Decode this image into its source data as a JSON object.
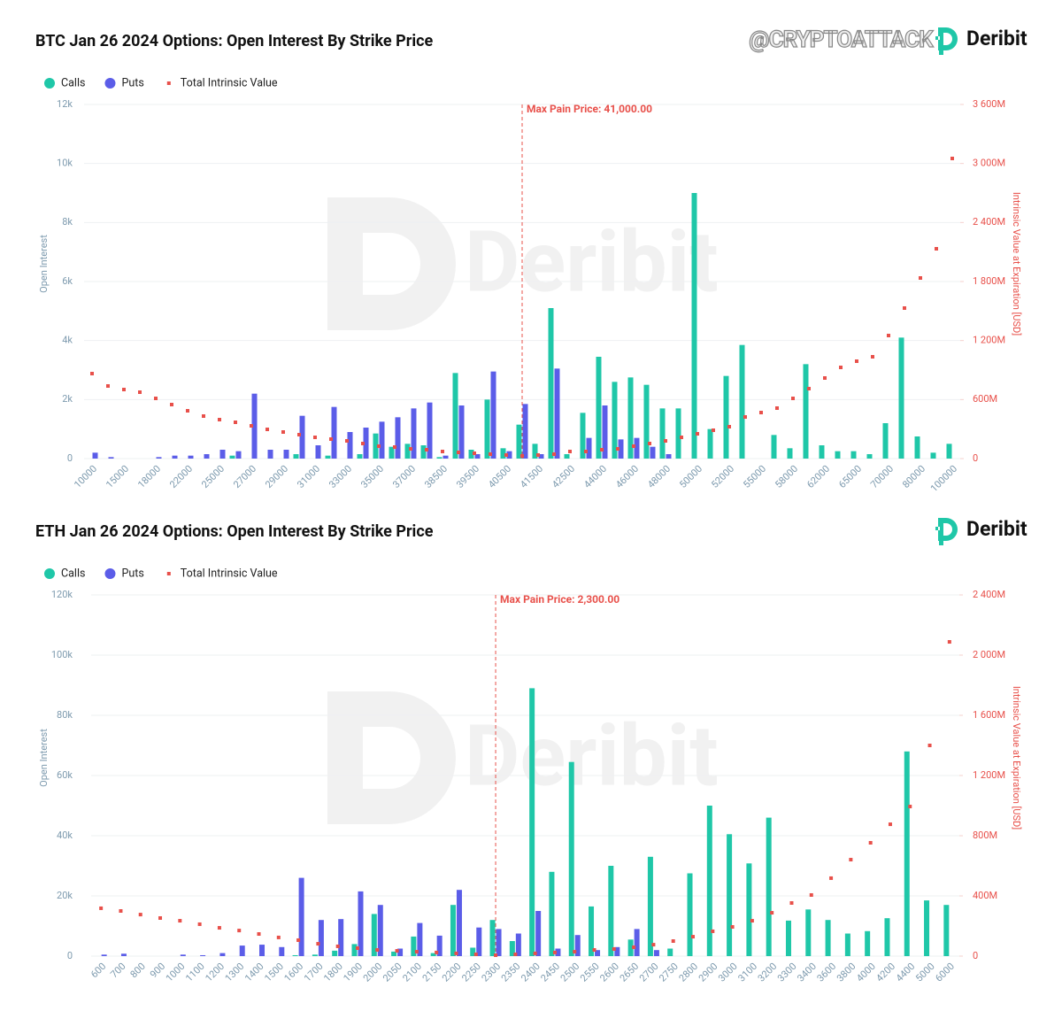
{
  "watermark_handle": "@CRYPTOATTACK",
  "brand": "Deribit",
  "chart_data": [
    {
      "type": "bar",
      "title": "BTC Jan 26 2024 Options: Open Interest By Strike Price",
      "categories": [
        "10000",
        null,
        "15000",
        null,
        "18000",
        null,
        "22000",
        null,
        "25000",
        null,
        "27000",
        null,
        "29000",
        null,
        "31000",
        null,
        "33000",
        null,
        "35000",
        null,
        "37000",
        null,
        "38500",
        null,
        "39500",
        null,
        "40500",
        null,
        "41500",
        null,
        "42500",
        null,
        "44000",
        null,
        "46000",
        null,
        "48000",
        null,
        "50000",
        null,
        "52000",
        null,
        "55000",
        null,
        "58000",
        null,
        "62000",
        null,
        "65000",
        null,
        "70000",
        null,
        "80000",
        null,
        "100000"
      ],
      "series": [
        {
          "name": "Calls",
          "type": "bar",
          "color": "#1fc7a8",
          "values": [
            0,
            0,
            0,
            0,
            0,
            0,
            0,
            0,
            0,
            100,
            0,
            0,
            0,
            150,
            0,
            100,
            0,
            150,
            850,
            400,
            500,
            450,
            50,
            2900,
            300,
            2000,
            350,
            1150,
            500,
            5100,
            150,
            1550,
            3450,
            2600,
            2750,
            2500,
            1700,
            1700,
            9000,
            1000,
            2800,
            3850,
            0,
            800,
            350,
            3200,
            450,
            250,
            250,
            150,
            1200,
            4100,
            750,
            200,
            500
          ]
        },
        {
          "name": "Puts",
          "type": "bar",
          "color": "#5b5de8",
          "values": [
            200,
            50,
            0,
            0,
            50,
            100,
            100,
            150,
            300,
            250,
            2200,
            300,
            300,
            1450,
            450,
            1750,
            900,
            1050,
            1250,
            1400,
            1700,
            1900,
            100,
            1800,
            150,
            2950,
            250,
            1850,
            150,
            3050,
            0,
            700,
            1800,
            650,
            700,
            400,
            150,
            0,
            0,
            0,
            0,
            0,
            0,
            0,
            0,
            0,
            0,
            0,
            0,
            0,
            0,
            0,
            0,
            0,
            0
          ]
        },
        {
          "name": "Total Intrinsic Value",
          "type": "scatter",
          "axis": "y2",
          "color": "#e8504a",
          "values": [
            864000000,
            738000000,
            702000000,
            675000000,
            612000000,
            549000000,
            486000000,
            432000000,
            396000000,
            369000000,
            333000000,
            297000000,
            270000000,
            243000000,
            216000000,
            198000000,
            180000000,
            153000000,
            126000000,
            117000000,
            99000000,
            90000000,
            72000000,
            63000000,
            54000000,
            45000000,
            36000000,
            27000000,
            36000000,
            45000000,
            72000000,
            72000000,
            90000000,
            99000000,
            126000000,
            153000000,
            180000000,
            216000000,
            252000000,
            288000000,
            324000000,
            423000000,
            468000000,
            513000000,
            612000000,
            711000000,
            819000000,
            927000000,
            990000000,
            1035000000,
            1251000000,
            1530000000,
            1836000000,
            2133000000,
            3051000000
          ]
        }
      ],
      "ylabel": "Open Interest",
      "y2label": "Intrinsic Value at Expiration [USD]",
      "ylim": [
        0,
        12000
      ],
      "yticks": [
        0,
        {
          "value": 2000,
          "label": "2k"
        },
        {
          "value": 4000,
          "label": "4k"
        },
        {
          "value": 6000,
          "label": "6k"
        },
        {
          "value": 8000,
          "label": "8k"
        },
        {
          "value": 10000,
          "label": "10k"
        },
        {
          "value": 12000,
          "label": "12k"
        }
      ],
      "y2lim": [
        0,
        3600000000
      ],
      "y2ticks": [
        0,
        {
          "value": 600000000,
          "label": "600M"
        },
        {
          "value": 1200000000,
          "label": "1 200M"
        },
        {
          "value": 1800000000,
          "label": "1 800M"
        },
        {
          "value": 2400000000,
          "label": "2 400M"
        },
        {
          "value": 3000000000,
          "label": "3 000M"
        },
        {
          "value": 3600000000,
          "label": "3 600M"
        }
      ],
      "grid": true,
      "legend": "top-left",
      "annotation": {
        "text": "Max Pain Price: 41,000.00",
        "color": "#e8504a"
      }
    },
    {
      "type": "bar",
      "title": "ETH Jan 26 2024 Options: Open Interest By Strike Price",
      "categories": [
        "600",
        "700",
        "800",
        "900",
        "1000",
        "1100",
        "1200",
        "1300",
        "1400",
        "1500",
        "1600",
        "1700",
        "1800",
        "1900",
        "2000",
        "2050",
        "2100",
        "2150",
        "2200",
        "2250",
        "2300",
        "2350",
        "2400",
        "2450",
        "2500",
        "2550",
        "2600",
        "2650",
        "2700",
        "2750",
        "2800",
        "2900",
        "3000",
        "3100",
        "3200",
        "3300",
        "3400",
        "3600",
        "3800",
        "4000",
        "4200",
        "4400",
        "5000",
        "6000"
      ],
      "series": [
        {
          "name": "Calls",
          "type": "bar",
          "color": "#1fc7a8",
          "values": [
            0,
            0,
            0,
            0,
            0,
            0,
            0,
            0,
            0,
            0,
            300,
            500,
            1800,
            4000,
            14000,
            1500,
            6500,
            1000,
            17000,
            2800,
            12000,
            5000,
            89000,
            28000,
            64500,
            16500,
            30000,
            5500,
            33000,
            2500,
            27500,
            50000,
            40500,
            30800,
            46000,
            11800,
            15500,
            12000,
            7500,
            8300,
            12600,
            68000,
            18500,
            17000
          ]
        },
        {
          "name": "Puts",
          "type": "bar",
          "color": "#5b5de8",
          "values": [
            500,
            800,
            0,
            0,
            500,
            300,
            1000,
            3500,
            3800,
            3000,
            26000,
            12000,
            12300,
            21500,
            17000,
            2500,
            11000,
            6800,
            22000,
            9500,
            9000,
            7500,
            15000,
            2500,
            7000,
            2000,
            3000,
            9000,
            2000,
            0,
            0,
            0,
            0,
            0,
            0,
            0,
            0,
            0,
            0,
            0,
            0,
            0,
            0,
            0
          ]
        },
        {
          "name": "Total Intrinsic Value",
          "type": "scatter",
          "axis": "y2",
          "color": "#e8504a",
          "values": [
            318000000,
            300000000,
            276000000,
            253000000,
            235000000,
            212000000,
            188000000,
            170000000,
            147000000,
            124000000,
            106000000,
            82000000,
            65000000,
            53000000,
            41000000,
            35000000,
            29000000,
            24000000,
            18000000,
            12000000,
            6000000,
            12000000,
            18000000,
            24000000,
            29000000,
            41000000,
            47000000,
            59000000,
            76000000,
            100000000,
            129000000,
            165000000,
            194000000,
            235000000,
            288000000,
            353000000,
            406000000,
            518000000,
            641000000,
            753000000,
            876000000,
            994000000,
            1400000000,
            2088000000
          ]
        }
      ],
      "ylabel": "Open Interest",
      "y2label": "Intrinsic Value at Expiration [USD]",
      "ylim": [
        0,
        120000
      ],
      "yticks": [
        0,
        {
          "value": 20000,
          "label": "20k"
        },
        {
          "value": 40000,
          "label": "40k"
        },
        {
          "value": 60000,
          "label": "60k"
        },
        {
          "value": 80000,
          "label": "80k"
        },
        {
          "value": 100000,
          "label": "100k"
        },
        {
          "value": 120000,
          "label": "120k"
        }
      ],
      "y2lim": [
        0,
        2400000000
      ],
      "y2ticks": [
        0,
        {
          "value": 400000000,
          "label": "400M"
        },
        {
          "value": 800000000,
          "label": "800M"
        },
        {
          "value": 1200000000,
          "label": "1 200M"
        },
        {
          "value": 1600000000,
          "label": "1 600M"
        },
        {
          "value": 2000000000,
          "label": "2 000M"
        },
        {
          "value": 2400000000,
          "label": "2 400M"
        }
      ],
      "grid": true,
      "legend": "top-left",
      "annotation": {
        "text": "Max Pain Price: 2,300.00",
        "color": "#e8504a"
      }
    }
  ]
}
